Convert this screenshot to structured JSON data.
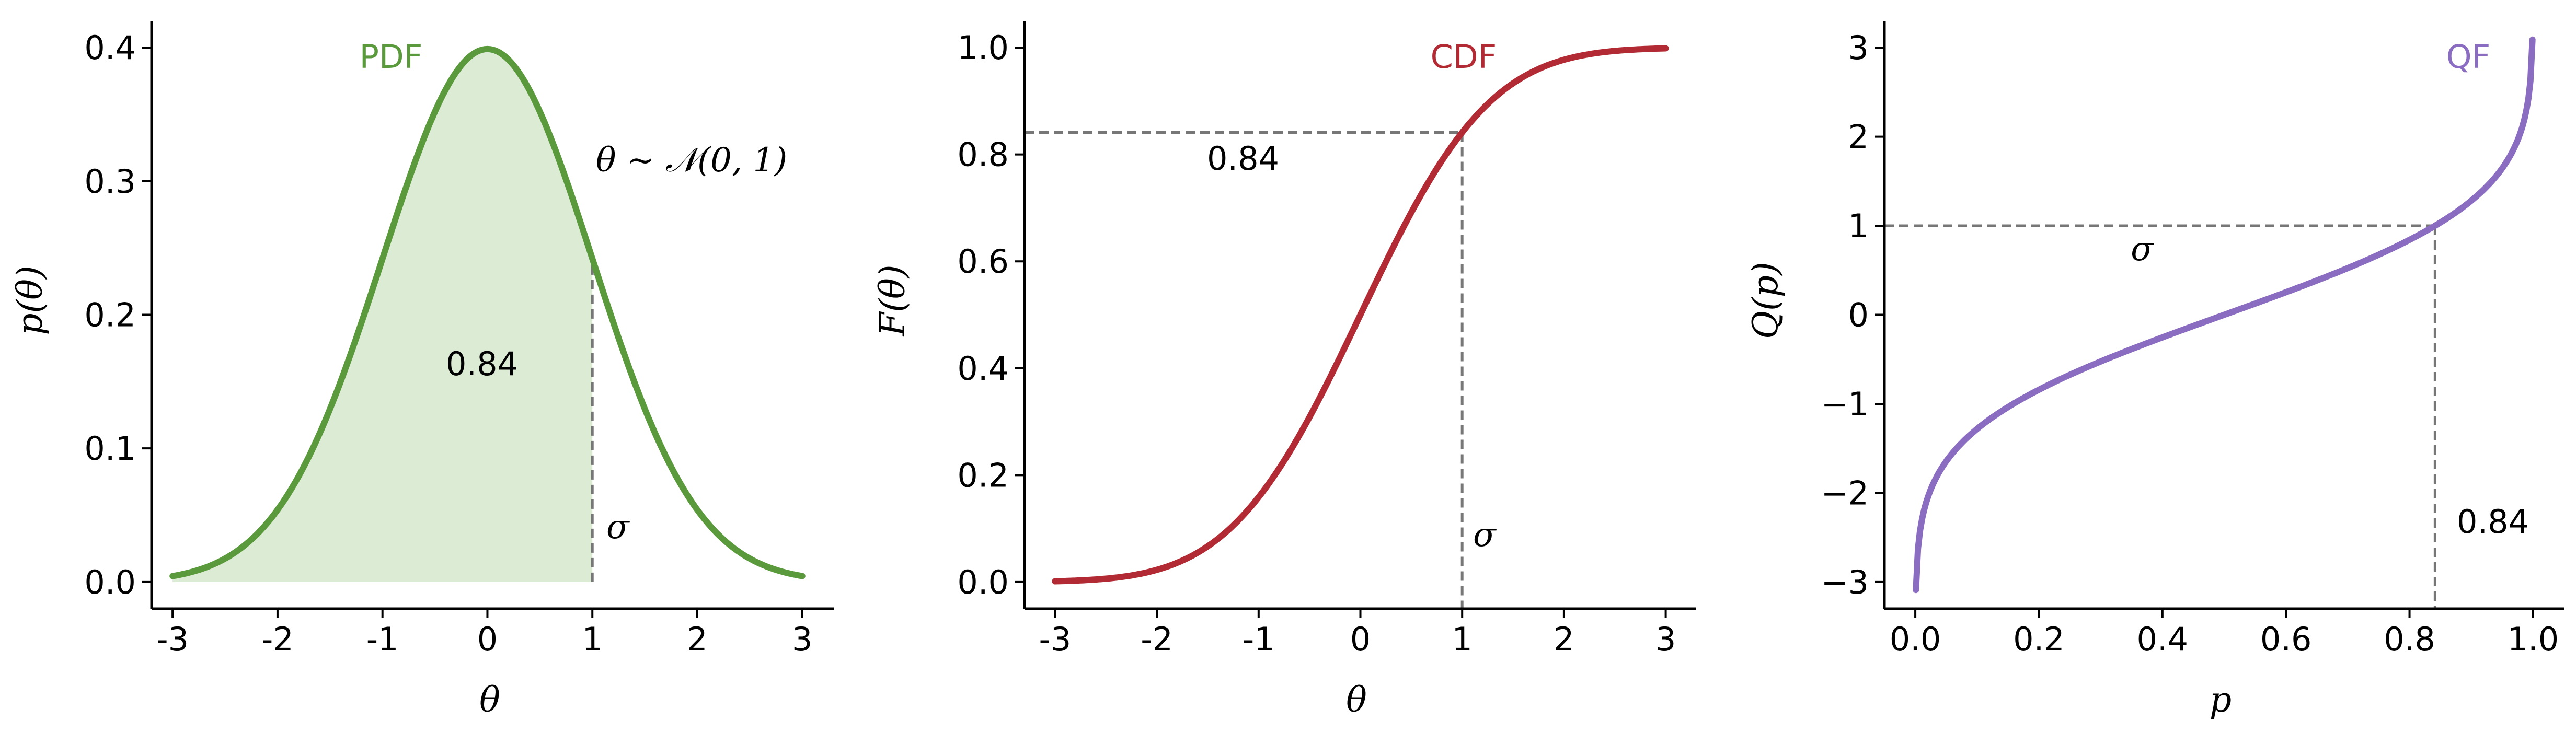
{
  "colors": {
    "pdf": "#5b9a3c",
    "pdf_fill": "#dcebd3",
    "cdf": "#b22a33",
    "qf": "#8a6cc0",
    "guide": "#777777"
  },
  "chart_data": [
    {
      "type": "area",
      "curve_label": "PDF",
      "xlabel": "θ",
      "ylabel": "p(θ)",
      "xlim": [
        -3.2,
        3.3
      ],
      "ylim": [
        -0.02,
        0.42
      ],
      "x_ticks": [
        -3,
        -2,
        -1,
        0,
        1,
        2,
        3
      ],
      "x_tick_labels": [
        "-3",
        "-2",
        "-1",
        "0",
        "1",
        "2",
        "3"
      ],
      "y_ticks": [
        0.0,
        0.1,
        0.2,
        0.3,
        0.4
      ],
      "y_tick_labels": [
        "0.0",
        "0.1",
        "0.2",
        "0.3",
        "0.4"
      ],
      "x": [
        -3.0,
        -2.5,
        -2.0,
        -1.5,
        -1.0,
        -0.5,
        0.0,
        0.5,
        1.0,
        1.5,
        2.0,
        2.5,
        3.0
      ],
      "y": [
        0.0044,
        0.0175,
        0.054,
        0.1295,
        0.242,
        0.3521,
        0.3989,
        0.3521,
        0.242,
        0.1295,
        0.054,
        0.0175,
        0.0044
      ],
      "shaded_upto": 1.0,
      "sigma_at": 1.0,
      "annotations": {
        "area": "0.84",
        "dist": "θ ~ 𝒩(0, 1)",
        "sigma": "σ"
      }
    },
    {
      "type": "line",
      "curve_label": "CDF",
      "xlabel": "θ",
      "ylabel": "F(θ)",
      "xlim": [
        -3.3,
        3.3
      ],
      "ylim": [
        -0.05,
        1.05
      ],
      "x_ticks": [
        -3,
        -2,
        -1,
        0,
        1,
        2,
        3
      ],
      "x_tick_labels": [
        "-3",
        "-2",
        "-1",
        "0",
        "1",
        "2",
        "3"
      ],
      "y_ticks": [
        0.0,
        0.2,
        0.4,
        0.6,
        0.8,
        1.0
      ],
      "y_tick_labels": [
        "0.0",
        "0.2",
        "0.4",
        "0.6",
        "0.8",
        "1.0"
      ],
      "x": [
        -3.0,
        -2.5,
        -2.0,
        -1.5,
        -1.0,
        -0.5,
        0.0,
        0.5,
        1.0,
        1.5,
        2.0,
        2.5,
        3.0
      ],
      "y": [
        0.0013,
        0.0062,
        0.0228,
        0.0668,
        0.1587,
        0.3085,
        0.5,
        0.6915,
        0.8413,
        0.9332,
        0.9772,
        0.9938,
        0.9987
      ],
      "guide_x": 1.0,
      "guide_y": 0.8413,
      "annotations": {
        "value": "0.84",
        "sigma": "σ"
      }
    },
    {
      "type": "line",
      "curve_label": "QF",
      "xlabel": "p",
      "ylabel": "Q(p)",
      "xlim": [
        -0.05,
        1.05
      ],
      "ylim": [
        -3.3,
        3.3
      ],
      "x_ticks": [
        0.0,
        0.2,
        0.4,
        0.6,
        0.8,
        1.0
      ],
      "x_tick_labels": [
        "0.0",
        "0.2",
        "0.4",
        "0.6",
        "0.8",
        "1.0"
      ],
      "y_ticks": [
        -3,
        -2,
        -1,
        0,
        1,
        2,
        3
      ],
      "y_tick_labels": [
        "−3",
        "−2",
        "−1",
        "0",
        "1",
        "2",
        "3"
      ],
      "x": [
        0.001,
        0.01,
        0.02,
        0.05,
        0.1,
        0.2,
        0.3,
        0.4,
        0.5,
        0.6,
        0.7,
        0.8,
        0.8413,
        0.9,
        0.95,
        0.98,
        0.99,
        0.999
      ],
      "y": [
        -3.09,
        -2.326,
        -2.054,
        -1.645,
        -1.282,
        -0.842,
        -0.524,
        -0.253,
        0.0,
        0.253,
        0.524,
        0.842,
        1.0,
        1.282,
        1.645,
        2.054,
        2.326,
        3.09
      ],
      "guide_x": 0.8413,
      "guide_y": 1.0,
      "annotations": {
        "sigma": "σ",
        "value": "0.84"
      }
    }
  ]
}
